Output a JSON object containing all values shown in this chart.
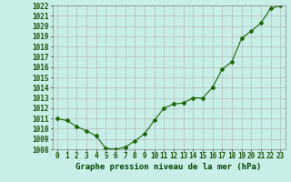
{
  "x": [
    0,
    1,
    2,
    3,
    4,
    5,
    6,
    7,
    8,
    9,
    10,
    11,
    12,
    13,
    14,
    15,
    16,
    17,
    18,
    19,
    20,
    21,
    22,
    23
  ],
  "y": [
    1011.0,
    1010.8,
    1010.2,
    1009.8,
    1009.3,
    1008.1,
    1008.0,
    1008.2,
    1008.8,
    1009.5,
    1010.8,
    1012.0,
    1012.4,
    1012.5,
    1013.0,
    1013.0,
    1014.0,
    1015.8,
    1016.5,
    1018.8,
    1019.5,
    1020.3,
    1021.7,
    1022.0
  ],
  "line_color": "#1a6600",
  "marker": "D",
  "marker_size": 2.0,
  "bg_color": "#c8eee8",
  "grid_color": "#b0b0b0",
  "xlabel": "Graphe pression niveau de la mer (hPa)",
  "xlabel_color": "#004400",
  "xlabel_fontsize": 6.5,
  "tick_color": "#1a5200",
  "tick_fontsize": 5.5,
  "ylim_min": 1008,
  "ylim_max": 1022,
  "ytick_step": 1,
  "xticks": [
    0,
    1,
    2,
    3,
    4,
    5,
    6,
    7,
    8,
    9,
    10,
    11,
    12,
    13,
    14,
    15,
    16,
    17,
    18,
    19,
    20,
    21,
    22,
    23
  ]
}
